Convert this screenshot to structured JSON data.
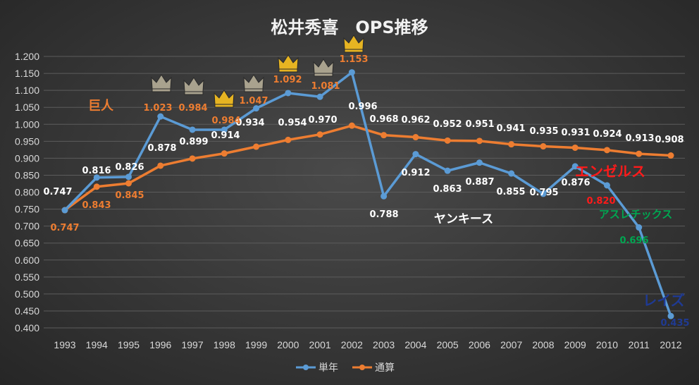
{
  "chart_data": {
    "type": "line",
    "title": "松井秀喜　OPS推移",
    "categories": [
      "1993",
      "1994",
      "1995",
      "1996",
      "1997",
      "1998",
      "1999",
      "2000",
      "2001",
      "2002",
      "2003",
      "2004",
      "2005",
      "2006",
      "2007",
      "2008",
      "2009",
      "2010",
      "2011",
      "2012"
    ],
    "yticks": [
      "0.400",
      "0.450",
      "0.500",
      "0.550",
      "0.600",
      "0.650",
      "0.700",
      "0.750",
      "0.800",
      "0.850",
      "0.900",
      "0.950",
      "1.000",
      "1.050",
      "1.100",
      "1.150",
      "1.200"
    ],
    "ylim": [
      0.4,
      1.2
    ],
    "series": [
      {
        "name": "単年",
        "color": "#5b9bd5",
        "values": [
          0.747,
          0.843,
          0.845,
          1.023,
          0.984,
          0.984,
          1.047,
          1.092,
          1.081,
          1.153,
          0.788,
          0.912,
          0.863,
          0.887,
          0.855,
          0.795,
          0.876,
          0.82,
          0.696,
          0.435
        ],
        "labels": [
          "",
          "",
          "",
          "1.023",
          "0.984",
          "0.984",
          "1.047",
          "1.092",
          "1.081",
          "1.153",
          "0.788",
          "0.912",
          "0.863",
          "0.887",
          "0.855",
          "0.795",
          "0.876",
          "0.820",
          "0.696",
          "0.435"
        ]
      },
      {
        "name": "通算",
        "color": "#ed7d31",
        "values": [
          0.747,
          0.816,
          0.826,
          0.878,
          0.899,
          0.914,
          0.934,
          0.954,
          0.97,
          0.996,
          0.968,
          0.962,
          0.952,
          0.951,
          0.941,
          0.935,
          0.931,
          0.924,
          0.913,
          0.908
        ],
        "labels": [
          "0.747",
          "0.816",
          "0.826",
          "0.878",
          "0.899",
          "0.914",
          "0.934",
          "0.954",
          "0.970",
          "0.996",
          "0.968",
          "0.962",
          "0.952",
          "0.951",
          "0.941",
          "0.935",
          "0.931",
          "0.924",
          "0.913",
          "0.908"
        ]
      }
    ],
    "extra_labels": [
      "0.747",
      "0.843",
      "0.845"
    ],
    "team_annotations": [
      {
        "text": "巨人",
        "color": "#ed7d31"
      },
      {
        "text": "ヤンキース",
        "color": "#ffffff"
      },
      {
        "text": "エンゼルス",
        "color": "#ff1a1a"
      },
      {
        "text": "アスレチックス",
        "color": "#00a651"
      },
      {
        "text": "レイズ",
        "color": "#1f3a93"
      }
    ],
    "crowns": [
      {
        "category": "1996",
        "kind": "silver"
      },
      {
        "category": "1997",
        "kind": "silver"
      },
      {
        "category": "1998",
        "kind": "gold"
      },
      {
        "category": "1999",
        "kind": "silver"
      },
      {
        "category": "2000",
        "kind": "gold"
      },
      {
        "category": "2001",
        "kind": "silver"
      },
      {
        "category": "2002",
        "kind": "gold"
      }
    ],
    "legend": [
      "単年",
      "通算"
    ],
    "legend_position": "bottom",
    "grid": true
  },
  "colors": {
    "grid": "#5c5c5c",
    "tick": "#d9d9d9",
    "crown_gold": "#e6b422",
    "crown_silver": "#a9a28e"
  }
}
